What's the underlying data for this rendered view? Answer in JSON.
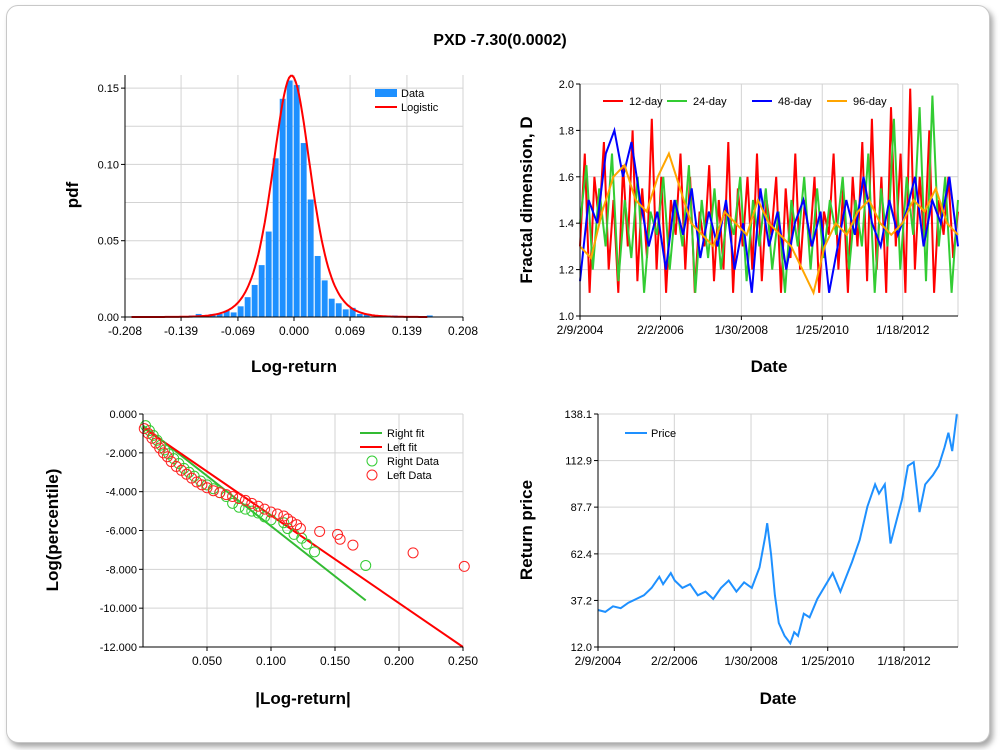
{
  "title": "PXD -7.30(0.0002)",
  "chart_data": [
    {
      "id": "pdf",
      "type": "bar",
      "xlabel": "Log-return",
      "ylabel": "pdf",
      "xlim": [
        -0.208,
        0.208
      ],
      "ylim": [
        0,
        0.1586
      ],
      "xticks": [
        -0.208,
        -0.139,
        -0.069,
        0.0,
        0.069,
        0.139,
        0.208
      ],
      "xtick_labels": [
        "-0.208",
        "-0.139",
        "-0.069",
        "0.000",
        "0.069",
        "0.139",
        "0.208"
      ],
      "yticks": [
        0,
        0.05,
        0.1,
        0.15
      ],
      "ytick_labels": [
        "0.00",
        "0.05",
        "0.10",
        "0.15"
      ],
      "ygrid_step": 0.025,
      "legend": {
        "position": "top-right",
        "items": [
          "Data",
          "Logistic"
        ]
      },
      "colors": {
        "Data": "#1e90ff",
        "Logistic": "#ff0000"
      },
      "histogram": {
        "first_bin_center": -0.126,
        "bin_width": 0.00862,
        "values": [
          0.001,
          0.002,
          0.0,
          0.002,
          0.002,
          0.004,
          0.003,
          0.007,
          0.013,
          0.021,
          0.034,
          0.056,
          0.104,
          0.143,
          0.155,
          0.152,
          0.114,
          0.077,
          0.04,
          0.024,
          0.012,
          0.009,
          0.005,
          0.006,
          0.002,
          0.002,
          0.0,
          0.001,
          0.001,
          0.001,
          0.0,
          0.0,
          0.0,
          0.0,
          0.001
        ]
      },
      "logistic": {
        "mu": -0.003,
        "s": 0.0158,
        "x_range": [
          -0.2,
          0.165
        ]
      }
    },
    {
      "id": "fractal",
      "type": "line",
      "xlabel": "Date",
      "ylabel": "Fractal dimension, D",
      "xlim": [
        2004.11,
        2013.41
      ],
      "ylim": [
        1.0,
        2.0
      ],
      "xticks": [
        2004.11,
        2006.09,
        2008.08,
        2010.07,
        2012.05
      ],
      "xtick_labels": [
        "2/9/2004",
        "2/2/2006",
        "1/30/2008",
        "1/25/2010",
        "1/18/2012"
      ],
      "yticks": [
        1.0,
        1.2,
        1.4,
        1.6,
        1.8,
        2.0
      ],
      "ytick_labels": [
        "1.0",
        "1.2",
        "1.4",
        "1.6",
        "1.8",
        "2.0"
      ],
      "legend": {
        "position": "top",
        "items": [
          "12-day",
          "24-day",
          "48-day",
          "96-day"
        ]
      },
      "x_start": 2004.11,
      "x_end": 2013.41,
      "series": [
        {
          "name": "12-day",
          "color": "#ff0000",
          "values": [
            1.3,
            1.7,
            1.1,
            1.6,
            1.4,
            1.75,
            1.2,
            1.5,
            1.1,
            1.65,
            1.3,
            1.8,
            1.15,
            1.55,
            1.25,
            1.85,
            1.2,
            1.6,
            1.1,
            1.5,
            1.35,
            1.7,
            1.2,
            1.6,
            1.1,
            1.45,
            1.3,
            1.65,
            1.15,
            1.5,
            1.2,
            1.75,
            1.1,
            1.55,
            1.3,
            1.6,
            1.2,
            1.7,
            1.15,
            1.5,
            1.35,
            1.6,
            1.1,
            1.55,
            1.25,
            1.7,
            1.2,
            1.5,
            1.3,
            1.6,
            1.1,
            1.45,
            1.35,
            1.7,
            1.2,
            1.55,
            1.1,
            1.6,
            1.3,
            1.75,
            1.15,
            1.85,
            1.2,
            1.6,
            1.1,
            1.9,
            1.3,
            1.7,
            1.1,
            1.98,
            1.2,
            1.6,
            1.3,
            1.8,
            1.1,
            1.5,
            1.35,
            1.6,
            1.25,
            1.45
          ]
        },
        {
          "name": "24-day",
          "color": "#33cc33",
          "values": [
            1.4,
            1.65,
            1.2,
            1.55,
            1.3,
            1.7,
            1.15,
            1.5,
            1.25,
            1.6,
            1.1,
            1.45,
            1.35,
            1.6,
            1.2,
            1.5,
            1.3,
            1.65,
            1.1,
            1.5,
            1.25,
            1.55,
            1.2,
            1.45,
            1.35,
            1.6,
            1.15,
            1.5,
            1.3,
            1.55,
            1.2,
            1.45,
            1.1,
            1.5,
            1.3,
            1.6,
            1.2,
            1.55,
            1.25,
            1.5,
            1.35,
            1.6,
            1.2,
            1.5,
            1.3,
            1.7,
            1.1,
            1.55,
            1.3,
            1.85,
            1.2,
            1.6,
            1.35,
            1.9,
            1.15,
            1.95,
            1.3,
            1.6,
            1.1,
            1.5
          ]
        },
        {
          "name": "48-day",
          "color": "#0000ff",
          "values": [
            1.15,
            1.5,
            1.4,
            1.7,
            1.8,
            1.6,
            1.75,
            1.5,
            1.3,
            1.45,
            1.2,
            1.5,
            1.35,
            1.55,
            1.25,
            1.45,
            1.3,
            1.5,
            1.2,
            1.4,
            1.1,
            1.55,
            1.3,
            1.45,
            1.2,
            1.4,
            1.5,
            1.3,
            1.45,
            1.1,
            1.3,
            1.5,
            1.35,
            1.6,
            1.4,
            1.3,
            1.5,
            1.35,
            1.45,
            1.6,
            1.3,
            1.5,
            1.4,
            1.6,
            1.3
          ]
        },
        {
          "name": "96-day",
          "color": "#ffa500",
          "values": [
            1.3,
            1.25,
            1.45,
            1.6,
            1.65,
            1.5,
            1.45,
            1.6,
            1.7,
            1.55,
            1.4,
            1.35,
            1.3,
            1.45,
            1.4,
            1.35,
            1.5,
            1.4,
            1.35,
            1.3,
            1.2,
            1.1,
            1.3,
            1.4,
            1.35,
            1.45,
            1.5,
            1.4,
            1.35,
            1.4,
            1.5,
            1.45,
            1.55,
            1.4,
            1.35
          ]
        }
      ]
    },
    {
      "id": "tail",
      "type": "scatter",
      "xlabel": "|Log-return|",
      "ylabel": "Log(percentile)",
      "xlim": [
        0,
        0.25
      ],
      "ylim": [
        -12,
        0
      ],
      "xticks": [
        0.05,
        0.1,
        0.15,
        0.2,
        0.25
      ],
      "xtick_labels": [
        "0.050",
        "0.100",
        "0.150",
        "0.200",
        "0.250"
      ],
      "yticks": [
        0,
        -2,
        -4,
        -6,
        -8,
        -10,
        -12
      ],
      "ytick_labels": [
        "0.000",
        "-2.000",
        "-4.000",
        "-6.000",
        "-8.000",
        "-10.000",
        "-12.000"
      ],
      "legend": {
        "position": "top-right",
        "items": [
          "Right fit",
          "Left fit",
          "Right Data",
          "Left Data"
        ]
      },
      "fits": [
        {
          "name": "Right fit",
          "color": "#33bb33",
          "x": [
            0,
            0.174
          ],
          "y": [
            -0.6,
            -9.6
          ]
        },
        {
          "name": "Left fit",
          "color": "#ff0000",
          "x": [
            0,
            0.25
          ],
          "y": [
            -0.7,
            -12.0
          ]
        }
      ],
      "series": [
        {
          "name": "Right Data",
          "color": "#33cc33",
          "x": [
            0.002,
            0.005,
            0.008,
            0.011,
            0.014,
            0.017,
            0.02,
            0.024,
            0.028,
            0.032,
            0.036,
            0.04,
            0.045,
            0.05,
            0.055,
            0.06,
            0.065,
            0.07,
            0.075,
            0.08,
            0.085,
            0.09,
            0.095,
            0.1,
            0.11,
            0.113,
            0.118,
            0.124,
            0.128,
            0.134,
            0.174
          ],
          "y": [
            -0.6,
            -0.85,
            -1.1,
            -1.35,
            -1.6,
            -1.85,
            -2.05,
            -2.3,
            -2.55,
            -2.8,
            -3.0,
            -3.2,
            -3.45,
            -3.65,
            -3.85,
            -4.05,
            -4.25,
            -4.6,
            -4.8,
            -4.9,
            -5.0,
            -5.1,
            -5.3,
            -5.45,
            -5.6,
            -5.9,
            -6.2,
            -6.4,
            -6.7,
            -7.1,
            -7.8
          ]
        },
        {
          "name": "Left Data",
          "color": "#ff2222",
          "x": [
            0.001,
            0.004,
            0.007,
            0.01,
            0.013,
            0.016,
            0.019,
            0.022,
            0.026,
            0.03,
            0.034,
            0.038,
            0.042,
            0.046,
            0.05,
            0.055,
            0.06,
            0.065,
            0.07,
            0.075,
            0.08,
            0.085,
            0.09,
            0.095,
            0.1,
            0.105,
            0.11,
            0.113,
            0.116,
            0.12,
            0.123,
            0.138,
            0.152,
            0.154,
            0.164,
            0.211,
            0.251
          ],
          "y": [
            -0.75,
            -1.0,
            -1.25,
            -1.5,
            -1.75,
            -2.0,
            -2.2,
            -2.45,
            -2.7,
            -2.9,
            -3.1,
            -3.3,
            -3.5,
            -3.65,
            -3.8,
            -3.95,
            -4.05,
            -4.15,
            -4.25,
            -4.35,
            -4.45,
            -4.6,
            -4.75,
            -4.9,
            -5.05,
            -5.15,
            -5.25,
            -5.4,
            -5.55,
            -5.7,
            -5.9,
            -6.05,
            -6.2,
            -6.45,
            -6.75,
            -7.15,
            -7.85
          ]
        }
      ]
    },
    {
      "id": "price",
      "type": "line",
      "xlabel": "Date",
      "ylabel": "Return price",
      "xlim": [
        2004.11,
        2013.45
      ],
      "ylim": [
        12.0,
        138.1
      ],
      "xticks": [
        2004.11,
        2006.09,
        2008.08,
        2010.07,
        2012.05
      ],
      "xtick_labels": [
        "2/9/2004",
        "2/2/2006",
        "1/30/2008",
        "1/25/2010",
        "1/18/2012"
      ],
      "yticks": [
        12.0,
        37.2,
        62.4,
        87.7,
        112.9,
        138.1
      ],
      "ytick_labels": [
        "12.0",
        "37.2",
        "62.4",
        "87.7",
        "112.9",
        "138.1"
      ],
      "legend": {
        "position": "top-left",
        "items": [
          "Price"
        ]
      },
      "series": [
        {
          "name": "Price",
          "color": "#1e90ff",
          "x": [
            2004.11,
            2004.3,
            2004.5,
            2004.7,
            2004.9,
            2005.1,
            2005.3,
            2005.5,
            2005.7,
            2005.8,
            2006.0,
            2006.1,
            2006.3,
            2006.5,
            2006.7,
            2006.9,
            2007.1,
            2007.3,
            2007.5,
            2007.7,
            2007.9,
            2008.1,
            2008.3,
            2008.45,
            2008.5,
            2008.6,
            2008.7,
            2008.8,
            2008.95,
            2009.1,
            2009.2,
            2009.3,
            2009.45,
            2009.6,
            2009.8,
            2010.0,
            2010.2,
            2010.4,
            2010.55,
            2010.7,
            2010.9,
            2011.1,
            2011.3,
            2011.4,
            2011.55,
            2011.7,
            2011.85,
            2012.0,
            2012.15,
            2012.3,
            2012.45,
            2012.6,
            2012.8,
            2012.95,
            2013.1,
            2013.2,
            2013.3,
            2013.42
          ],
          "y": [
            32,
            31,
            34,
            33,
            36,
            38,
            40,
            44,
            50,
            46,
            52,
            48,
            44,
            46,
            40,
            42,
            38,
            44,
            48,
            42,
            47,
            44,
            55,
            72,
            79,
            62,
            40,
            25,
            18,
            14,
            20,
            18,
            30,
            28,
            38,
            45,
            52,
            42,
            50,
            58,
            70,
            88,
            100,
            95,
            100,
            68,
            80,
            92,
            110,
            112,
            85,
            100,
            105,
            110,
            120,
            128,
            118,
            138
          ]
        }
      ]
    }
  ]
}
